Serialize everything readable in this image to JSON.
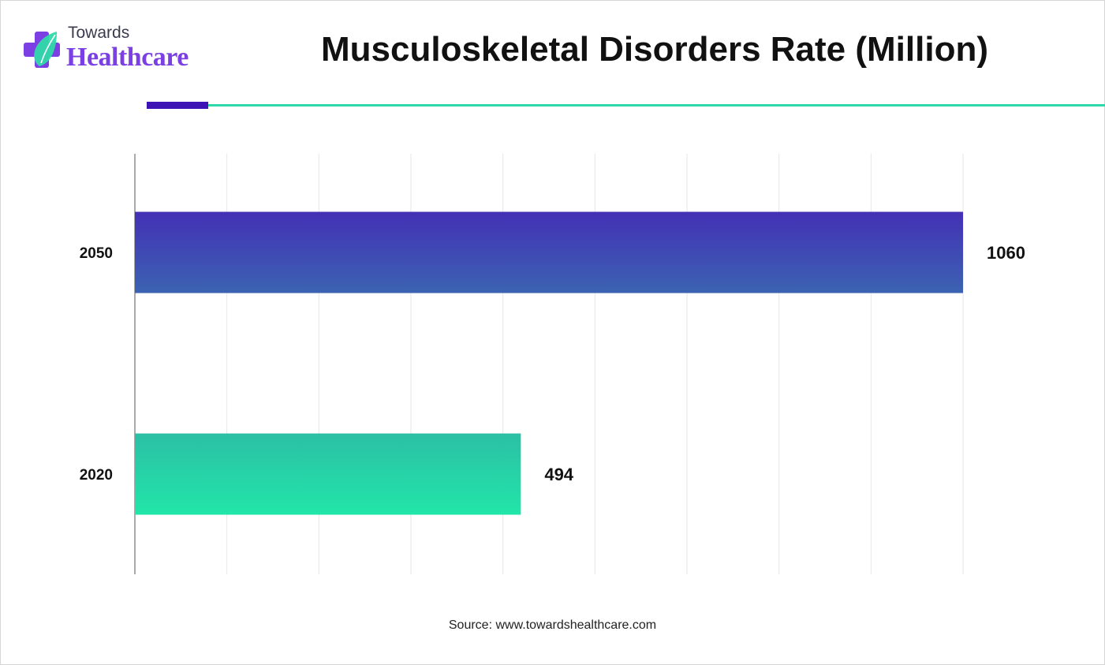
{
  "brand": {
    "line1": "Towards",
    "line2": "Healthcare",
    "colors": {
      "purple": "#7b3fe4",
      "teal": "#2fd9a9",
      "dark_purple": "#3d13b6"
    }
  },
  "chart_data": {
    "type": "bar",
    "orientation": "horizontal",
    "title": "Musculoskeletal Disorders Rate (Million)",
    "categories": [
      "2050",
      "2020"
    ],
    "values": [
      1060,
      494
    ],
    "data_labels": [
      "1060",
      "494"
    ],
    "xlim": [
      0,
      1080
    ],
    "grid": true,
    "legend": "none",
    "colors": {
      "2050": [
        "#4430b5",
        "#3b63b2"
      ],
      "2020": [
        "#2bbfa5",
        "#22e6a9"
      ]
    }
  },
  "source": "Source: www.towardshealthcare.com"
}
